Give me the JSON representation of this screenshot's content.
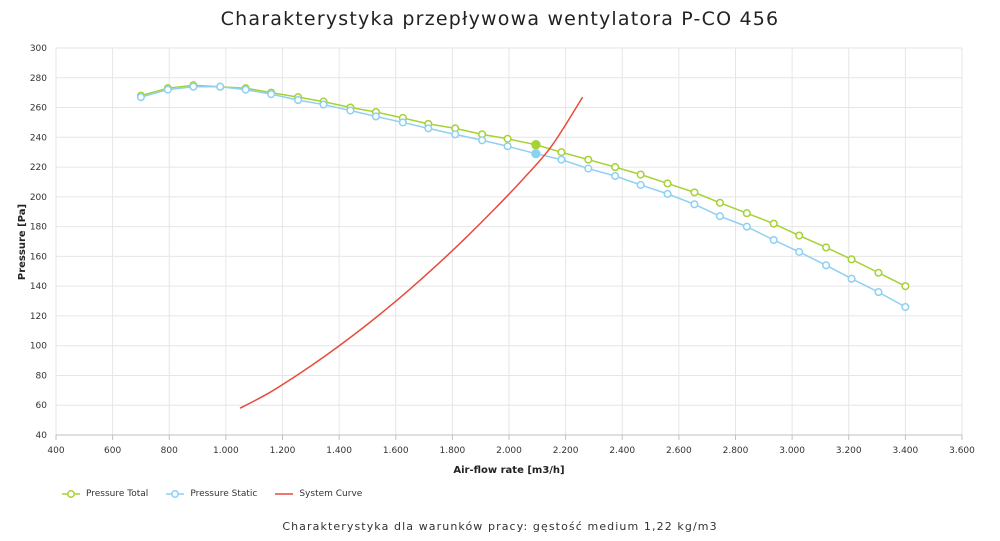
{
  "page": {
    "title": "Charakterystyka przepływowa wentylatora P-CO 456",
    "caption": "Charakterystyka dla warunków pracy: gęstość medium 1,22 kg/m3"
  },
  "colors": {
    "total": "#a6d234",
    "static": "#8ed0f2",
    "system": "#e84a3c",
    "grid": "#e6e6e6"
  },
  "chart_data": {
    "type": "line",
    "xlabel": "Air-flow rate [m3/h]",
    "ylabel": "Pressure [Pa]",
    "xlim": [
      400,
      3600
    ],
    "ylim": [
      40,
      300
    ],
    "x_ticks": [
      400,
      600,
      800,
      1000,
      1200,
      1400,
      1600,
      1800,
      2000,
      2200,
      2400,
      2600,
      2800,
      3000,
      3200,
      3400,
      3600
    ],
    "x_tick_labels": [
      "400",
      "600",
      "800",
      "1.000",
      "1.200",
      "1.400",
      "1.600",
      "1.800",
      "2.000",
      "2.200",
      "2.400",
      "2.600",
      "2.800",
      "3.000",
      "3.200",
      "3.400",
      "3.600"
    ],
    "y_ticks": [
      40,
      60,
      80,
      100,
      120,
      140,
      160,
      180,
      200,
      220,
      240,
      260,
      280,
      300
    ],
    "grid": true,
    "legend_position": "bottom-left",
    "series": [
      {
        "name": "Pressure Total",
        "key": "total",
        "marker": "circle",
        "x": [
          700,
          795,
          885,
          980,
          1070,
          1160,
          1255,
          1345,
          1440,
          1530,
          1625,
          1715,
          1810,
          1905,
          1995,
          2095,
          2185,
          2280,
          2375,
          2465,
          2560,
          2655,
          2745,
          2840,
          2935,
          3025,
          3120,
          3210,
          3305,
          3400
        ],
        "y": [
          268,
          273,
          275,
          274,
          273,
          270,
          267,
          264,
          260,
          257,
          253,
          249,
          246,
          242,
          239,
          235,
          230,
          225,
          220,
          215,
          209,
          203,
          196,
          189,
          182,
          174,
          166,
          158,
          149,
          140
        ]
      },
      {
        "name": "Pressure Static",
        "key": "static",
        "marker": "circle",
        "x": [
          700,
          795,
          885,
          980,
          1070,
          1160,
          1255,
          1345,
          1440,
          1530,
          1625,
          1715,
          1810,
          1905,
          1995,
          2095,
          2185,
          2280,
          2375,
          2465,
          2560,
          2655,
          2745,
          2840,
          2935,
          3025,
          3120,
          3210,
          3305,
          3400
        ],
        "y": [
          267,
          272,
          274,
          274,
          272,
          269,
          265,
          262,
          258,
          254,
          250,
          246,
          242,
          238,
          234,
          229,
          225,
          219,
          214,
          208,
          202,
          195,
          187,
          180,
          171,
          163,
          154,
          145,
          136,
          126
        ]
      },
      {
        "name": "System Curve",
        "key": "system",
        "marker": "none",
        "x": [
          1050,
          1150,
          1250,
          1350,
          1450,
          1550,
          1650,
          1750,
          1850,
          1950,
          2050,
          2150,
          2260
        ],
        "y": [
          58,
          68,
          80,
          93,
          107,
          122,
          138,
          155,
          173,
          192,
          212,
          234,
          267
        ]
      }
    ],
    "operating_point": {
      "x": 2095,
      "total": 235,
      "static": 229
    }
  }
}
